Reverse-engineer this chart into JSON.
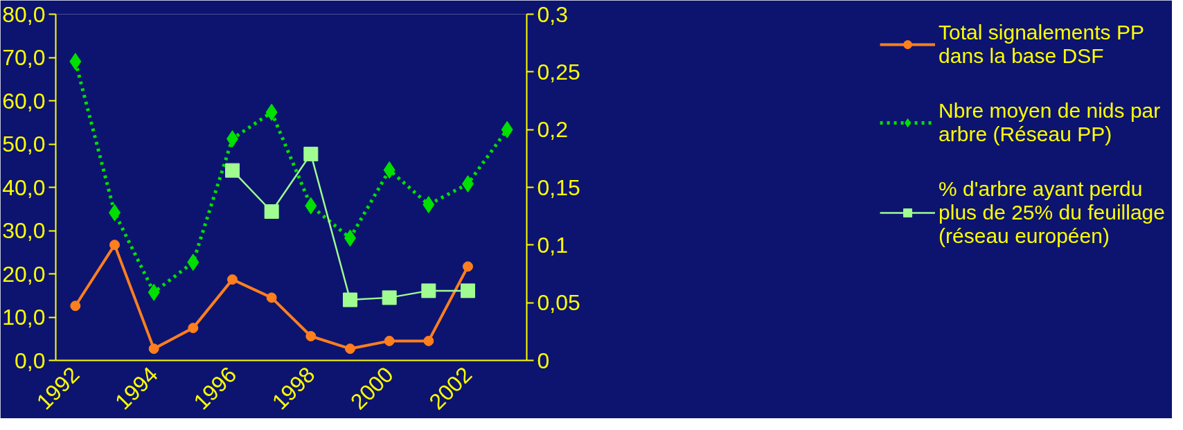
{
  "chart_data": {
    "type": "line",
    "categories": [
      "1992",
      null,
      "1994",
      null,
      "1996",
      null,
      "1998",
      null,
      "2000",
      null,
      "2002",
      null
    ],
    "series": [
      {
        "name": "Total signalements PP dans la base DSF",
        "color": "#ff7f1e",
        "marker": "circle",
        "line_style": "solid",
        "values": [
          12.6,
          26.7,
          2.7,
          7.5,
          18.7,
          14.5,
          5.6,
          2.7,
          4.5,
          4.5,
          21.7,
          null
        ]
      },
      {
        "name": "Nbre moyen de nids par arbre (Réseau PP)",
        "color": "#00e000",
        "marker": "diamond",
        "line_style": "dotted",
        "axis": "y2",
        "values": [
          0.259,
          0.128,
          0.059,
          0.085,
          0.192,
          0.215,
          0.134,
          0.106,
          0.165,
          0.135,
          0.153,
          0.2
        ]
      },
      {
        "name": "% d'arbre ayant perdu plus de 25% du feuillage (réseau européen)",
        "color": "#a0fc90",
        "marker": "square",
        "line_style": "solid",
        "values": [
          null,
          null,
          null,
          null,
          43.9,
          34.4,
          47.7,
          14.0,
          14.5,
          16.1,
          16.1,
          null
        ]
      }
    ],
    "ylim": [
      0,
      80
    ],
    "yticks": [
      {
        "value": 0,
        "label": "0,0"
      },
      {
        "value": 10,
        "label": "10,0"
      },
      {
        "value": 20,
        "label": "20,0"
      },
      {
        "value": 30,
        "label": "30,0"
      },
      {
        "value": 40,
        "label": "40,0"
      },
      {
        "value": 50,
        "label": "50,0"
      },
      {
        "value": 60,
        "label": "60,0"
      },
      {
        "value": 70,
        "label": "70,0"
      },
      {
        "value": 80,
        "label": "80,0"
      }
    ],
    "y2lim": [
      0,
      0.3
    ],
    "y2ticks": [
      0,
      {
        "value": 0.05,
        "label": "0,05"
      },
      {
        "value": 0.1,
        "label": "0,1"
      },
      {
        "value": 0.15,
        "label": "0,15"
      },
      {
        "value": 0.2,
        "label": "0,2"
      },
      {
        "value": 0.25,
        "label": "0,25"
      },
      {
        "value": 0.3,
        "label": "0,3"
      }
    ],
    "grid": false,
    "legend": "right"
  }
}
